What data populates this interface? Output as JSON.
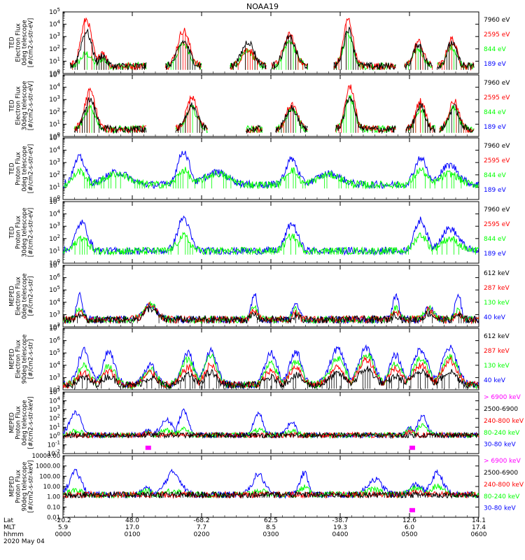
{
  "title": "NOAA19",
  "colors": {
    "black": "#000000",
    "red": "#ff0000",
    "green": "#00ff00",
    "blue": "#0000ff",
    "magenta": "#ff00ff"
  },
  "footer": {
    "row_labels": [
      "Lat",
      "MLT",
      "hhmm",
      "2020 May 04"
    ],
    "lat": [
      "-20.2",
      "48.0",
      "-68.2",
      "62.5",
      "-38.7",
      "12.6",
      "14.1"
    ],
    "mlt": [
      "5.9",
      "17.0",
      "7.7",
      "8.5",
      "19.3",
      "6.0",
      "17.4"
    ],
    "hhmm": [
      "0000",
      "0100",
      "0200",
      "0300",
      "0400",
      "0500",
      "0600"
    ]
  },
  "chart_data": [
    {
      "type": "line",
      "ylabel": "TED\nElectron Flux\n0deg telescope\n[#/cm2-s-str-eV]",
      "yscale": "log",
      "ytick_labels": [
        "10^0",
        "10^1",
        "10^2",
        "10^3",
        "10^4",
        "10^5"
      ],
      "ylim_exp": [
        0,
        5
      ],
      "xlim": [
        "0000",
        "0600"
      ],
      "legend": [
        {
          "label": "7960 eV",
          "color": "black"
        },
        {
          "label": "2595 eV",
          "color": "red"
        },
        {
          "label": "844 eV",
          "color": "green"
        },
        {
          "label": "189 eV",
          "color": "blue"
        }
      ],
      "series_colors": [
        "green",
        "red",
        "black"
      ],
      "bumps": [
        {
          "x": 0.056,
          "w": 0.018,
          "p": [
            1.6,
            4.4,
            3.4
          ]
        },
        {
          "x": 0.095,
          "w": 0.012,
          "p": [
            1.2,
            1.8,
            1.5
          ]
        },
        {
          "x": 0.29,
          "w": 0.02,
          "p": [
            2.4,
            3.5,
            2.6
          ]
        },
        {
          "x": 0.445,
          "w": 0.02,
          "p": [
            1.8,
            2.0,
            2.6
          ]
        },
        {
          "x": 0.545,
          "w": 0.02,
          "p": [
            2.6,
            3.1,
            2.9
          ]
        },
        {
          "x": 0.686,
          "w": 0.016,
          "p": [
            3.3,
            4.4,
            3.6
          ]
        },
        {
          "x": 0.855,
          "w": 0.016,
          "p": [
            2.0,
            2.6,
            2.4
          ]
        },
        {
          "x": 0.935,
          "w": 0.016,
          "p": [
            2.2,
            2.8,
            2.5
          ]
        }
      ],
      "noise_ranges": [
        [
          0.09,
          0.2
        ],
        [
          0.44,
          0.47
        ],
        [
          0.7,
          0.8
        ],
        [
          0.97,
          0.99
        ]
      ],
      "floor_exp": 0.6
    },
    {
      "type": "line",
      "ylabel": "TED\nElectron Flux\n30deg telescope\n[#/cm2-s-str-eV]",
      "yscale": "log",
      "ytick_labels": [
        "10^0",
        "10^1",
        "10^2",
        "10^3",
        "10^4",
        "10^5"
      ],
      "ylim_exp": [
        0,
        5
      ],
      "xlim": [
        "0000",
        "0600"
      ],
      "legend": [
        {
          "label": "7960 eV",
          "color": "black"
        },
        {
          "label": "2595 eV",
          "color": "red"
        },
        {
          "label": "844 eV",
          "color": "green"
        },
        {
          "label": "189 eV",
          "color": "blue"
        }
      ],
      "series_colors": [
        "green",
        "red",
        "black"
      ],
      "bumps": [
        {
          "x": 0.065,
          "w": 0.018,
          "p": [
            2.4,
            3.7,
            3.0
          ]
        },
        {
          "x": 0.31,
          "w": 0.018,
          "p": [
            2.3,
            3.1,
            2.5
          ]
        },
        {
          "x": 0.55,
          "w": 0.018,
          "p": [
            2.3,
            2.6,
            2.3
          ]
        },
        {
          "x": 0.69,
          "w": 0.016,
          "p": [
            3.2,
            4.1,
            3.2
          ]
        },
        {
          "x": 0.86,
          "w": 0.016,
          "p": [
            2.2,
            2.9,
            2.5
          ]
        },
        {
          "x": 0.94,
          "w": 0.016,
          "p": [
            2.3,
            2.9,
            2.4
          ]
        }
      ],
      "noise_ranges": [
        [
          0.1,
          0.2
        ],
        [
          0.44,
          0.48
        ],
        [
          0.72,
          0.8
        ],
        [
          0.96,
          0.99
        ]
      ],
      "floor_exp": 0.6
    },
    {
      "type": "line",
      "ylabel": "TED\nProton Flux\n0deg telescope\n[#/cm2-s-str-eV]",
      "yscale": "log",
      "ytick_labels": [
        "10^0",
        "10^1",
        "10^2",
        "10^3",
        "10^4",
        "10^5"
      ],
      "ylim_exp": [
        0,
        5
      ],
      "xlim": [
        "0000",
        "0600"
      ],
      "legend": [
        {
          "label": "7960 eV",
          "color": "black"
        },
        {
          "label": "2595 eV",
          "color": "red"
        },
        {
          "label": "844 eV",
          "color": "green"
        },
        {
          "label": "189 eV",
          "color": "blue"
        }
      ],
      "series_colors": [
        "blue",
        "green"
      ],
      "bumps": [
        {
          "x": 0.04,
          "w": 0.02,
          "p": [
            3.4,
            2.3
          ]
        },
        {
          "x": 0.13,
          "w": 0.04,
          "p": [
            2.2,
            2.1
          ]
        },
        {
          "x": 0.29,
          "w": 0.02,
          "p": [
            3.9,
            2.4
          ]
        },
        {
          "x": 0.37,
          "w": 0.04,
          "p": [
            2.2,
            2.1
          ]
        },
        {
          "x": 0.55,
          "w": 0.02,
          "p": [
            3.3,
            2.4
          ]
        },
        {
          "x": 0.64,
          "w": 0.04,
          "p": [
            2.1,
            2.0
          ]
        },
        {
          "x": 0.86,
          "w": 0.02,
          "p": [
            3.4,
            2.4
          ]
        },
        {
          "x": 0.93,
          "w": 0.03,
          "p": [
            2.8,
            2.1
          ]
        }
      ],
      "noise_ranges": [
        [
          0.0,
          1.0
        ]
      ],
      "floor_exp": 1.2
    },
    {
      "type": "line",
      "ylabel": "TED\nProton Flux\n30deg telescope\n[#/cm2-s-str-eV]",
      "yscale": "log",
      "ytick_labels": [
        "10^0",
        "10^1",
        "10^2",
        "10^3",
        "10^4",
        "10^5"
      ],
      "ylim_exp": [
        0,
        5
      ],
      "xlim": [
        "0000",
        "0600"
      ],
      "legend": [
        {
          "label": "7960 eV",
          "color": "black"
        },
        {
          "label": "2595 eV",
          "color": "red"
        },
        {
          "label": "844 eV",
          "color": "green"
        },
        {
          "label": "189 eV",
          "color": "blue"
        }
      ],
      "series_colors": [
        "blue",
        "green"
      ],
      "bumps": [
        {
          "x": 0.045,
          "w": 0.02,
          "p": [
            3.3,
            2.1
          ]
        },
        {
          "x": 0.29,
          "w": 0.02,
          "p": [
            3.7,
            2.2
          ]
        },
        {
          "x": 0.55,
          "w": 0.02,
          "p": [
            3.2,
            2.2
          ]
        },
        {
          "x": 0.86,
          "w": 0.02,
          "p": [
            3.5,
            2.3
          ]
        },
        {
          "x": 0.93,
          "w": 0.03,
          "p": [
            2.8,
            2.0
          ]
        }
      ],
      "noise_ranges": [
        [
          0.0,
          1.0
        ]
      ],
      "floor_exp": 1.0
    },
    {
      "type": "line",
      "ylabel": "MEPED\nElectron Flux\n0deg telescope\n[#/cm2-s-str]",
      "yscale": "log",
      "ytick_labels": [
        "10^2",
        "10^3",
        "10^4",
        "10^5",
        "10^6",
        "10^7"
      ],
      "ylim_exp": [
        2,
        7
      ],
      "xlim": [
        "0000",
        "0600"
      ],
      "legend": [
        {
          "label": "612 keV",
          "color": "black"
        },
        {
          "label": "287 keV",
          "color": "red"
        },
        {
          "label": "130 keV",
          "color": "green"
        },
        {
          "label": "40 keV",
          "color": "blue"
        }
      ],
      "series_colors": [
        "blue",
        "green",
        "red",
        "black"
      ],
      "bumps": [
        {
          "x": 0.04,
          "w": 0.01,
          "p": [
            4.5,
            3.5,
            3.2,
            3.0
          ]
        },
        {
          "x": 0.21,
          "w": 0.02,
          "p": [
            3.8,
            3.8,
            3.7,
            3.5
          ]
        },
        {
          "x": 0.46,
          "w": 0.01,
          "p": [
            4.7,
            3.6,
            3.3,
            3.0
          ]
        },
        {
          "x": 0.56,
          "w": 0.01,
          "p": [
            4.1,
            3.4,
            3.1,
            2.9
          ]
        },
        {
          "x": 0.8,
          "w": 0.01,
          "p": [
            4.6,
            3.6,
            3.4,
            3.0
          ]
        },
        {
          "x": 0.88,
          "w": 0.015,
          "p": [
            3.6,
            3.5,
            3.4,
            3.1
          ]
        },
        {
          "x": 0.95,
          "w": 0.01,
          "p": [
            4.7,
            3.4,
            3.2,
            3.0
          ]
        }
      ],
      "noise_ranges": [
        [
          0.0,
          1.0
        ]
      ],
      "floor_exp": 2.6
    },
    {
      "type": "line",
      "ylabel": "MEPED\nElectron Flux\n90deg telescope\n[#/cm2-s-str]",
      "yscale": "log",
      "ytick_labels": [
        "10^2",
        "10^3",
        "10^4",
        "10^5",
        "10^6",
        "10^7"
      ],
      "ylim_exp": [
        2,
        7
      ],
      "xlim": [
        "0000",
        "0600"
      ],
      "legend": [
        {
          "label": "612 keV",
          "color": "black"
        },
        {
          "label": "287 keV",
          "color": "red"
        },
        {
          "label": "130 keV",
          "color": "green"
        },
        {
          "label": "40 keV",
          "color": "blue"
        }
      ],
      "series_colors": [
        "blue",
        "green",
        "red",
        "black"
      ],
      "bumps": [
        {
          "x": 0.05,
          "w": 0.02,
          "p": [
            5.2,
            4.0,
            3.4,
            3.0
          ]
        },
        {
          "x": 0.11,
          "w": 0.02,
          "p": [
            5.1,
            4.0,
            3.5,
            3.1
          ]
        },
        {
          "x": 0.21,
          "w": 0.02,
          "p": [
            4.0,
            3.7,
            3.4,
            3.0
          ]
        },
        {
          "x": 0.3,
          "w": 0.02,
          "p": [
            5.0,
            4.5,
            3.8,
            3.2
          ]
        },
        {
          "x": 0.355,
          "w": 0.02,
          "p": [
            5.2,
            4.8,
            4.0,
            3.4
          ]
        },
        {
          "x": 0.5,
          "w": 0.02,
          "p": [
            5.0,
            4.1,
            3.5,
            3.0
          ]
        },
        {
          "x": 0.56,
          "w": 0.02,
          "p": [
            5.1,
            4.3,
            3.9,
            3.2
          ]
        },
        {
          "x": 0.66,
          "w": 0.025,
          "p": [
            5.3,
            4.6,
            3.8,
            3.3
          ]
        },
        {
          "x": 0.73,
          "w": 0.025,
          "p": [
            5.4,
            4.9,
            4.5,
            3.7
          ]
        },
        {
          "x": 0.8,
          "w": 0.02,
          "p": [
            4.8,
            4.1,
            3.8,
            3.1
          ]
        },
        {
          "x": 0.86,
          "w": 0.025,
          "p": [
            5.3,
            4.5,
            4.0,
            3.6
          ]
        },
        {
          "x": 0.93,
          "w": 0.025,
          "p": [
            5.4,
            4.7,
            4.4,
            3.5
          ]
        }
      ],
      "noise_ranges": [
        [
          0.0,
          1.0
        ]
      ],
      "floor_exp": 2.4
    },
    {
      "type": "line",
      "ylabel": "MEPED\nProton Flux\n0deg telescope\n[#/cm2-s-str-keV]",
      "yscale": "log",
      "ytick_labels": [
        "10^-2",
        "10^-1",
        "10^0",
        "10^1",
        "10^2",
        "10^3",
        "10^4",
        "10^5"
      ],
      "ylim_exp": [
        -2,
        5
      ],
      "xlim": [
        "0000",
        "0600"
      ],
      "legend": [
        {
          "label": "> 6900 keV",
          "color": "magenta"
        },
        {
          "label": "2500-6900",
          "color": "black"
        },
        {
          "label": "240-800 keV",
          "color": "red"
        },
        {
          "label": "80-240 keV",
          "color": "green"
        },
        {
          "label": "30-80 keV",
          "color": "blue"
        }
      ],
      "series_colors": [
        "blue",
        "green",
        "red",
        "black"
      ],
      "bumps": [
        {
          "x": 0.03,
          "w": 0.02,
          "p": [
            2.6,
            0.6,
            -0.4,
            -0.8
          ]
        },
        {
          "x": 0.205,
          "w": 0.01,
          "p": [
            0.6,
            0.5,
            0.3,
            -0.4
          ]
        },
        {
          "x": 0.25,
          "w": 0.02,
          "p": [
            1.8,
            0.6,
            -0.3,
            -0.9
          ]
        },
        {
          "x": 0.29,
          "w": 0.015,
          "p": [
            2.9,
            0.9,
            -0.4,
            -0.9
          ]
        },
        {
          "x": 0.47,
          "w": 0.015,
          "p": [
            2.6,
            0.7,
            -0.4,
            -0.9
          ]
        },
        {
          "x": 0.55,
          "w": 0.015,
          "p": [
            1.6,
            0.6,
            -0.5,
            -0.9
          ]
        },
        {
          "x": 0.835,
          "w": 0.012,
          "p": [
            0.9,
            0.7,
            0.4,
            -0.2
          ]
        },
        {
          "x": 0.865,
          "w": 0.015,
          "p": [
            2.4,
            1.3,
            -0.2,
            -0.9
          ]
        }
      ],
      "noise_ranges": [
        [
          0.0,
          1.0
        ]
      ],
      "floor_exp": 0.1,
      "magenta_spots": [
        0.205,
        0.84
      ]
    },
    {
      "type": "line",
      "ylabel": "MEPED\nProton Flux\n90deg telescope\n[#/cm2-s-str-keV]",
      "yscale": "log",
      "ytick_labels": [
        "0.01",
        "0.10",
        "1.00",
        "10.00",
        "100.00",
        "1000.00",
        "10000.00"
      ],
      "ylim_exp": [
        -2,
        4
      ],
      "xlim": [
        "0000",
        "0600"
      ],
      "legend": [
        {
          "label": "> 6900 keV",
          "color": "magenta"
        },
        {
          "label": "2500-6900",
          "color": "black"
        },
        {
          "label": "240-800 keV",
          "color": "red"
        },
        {
          "label": "80-240 keV",
          "color": "green"
        },
        {
          "label": "30-80 keV",
          "color": "blue"
        }
      ],
      "series_colors": [
        "blue",
        "green",
        "red",
        "black"
      ],
      "bumps": [
        {
          "x": 0.03,
          "w": 0.02,
          "p": [
            2.4,
            0.6,
            -0.4,
            -0.8
          ]
        },
        {
          "x": 0.2,
          "w": 0.012,
          "p": [
            0.9,
            0.6,
            0.1,
            -0.4
          ]
        },
        {
          "x": 0.265,
          "w": 0.025,
          "p": [
            2.4,
            0.6,
            -0.4,
            -0.8
          ]
        },
        {
          "x": 0.47,
          "w": 0.02,
          "p": [
            2.2,
            0.6,
            -0.4,
            -0.9
          ]
        },
        {
          "x": 0.58,
          "w": 0.015,
          "p": [
            2.3,
            0.9,
            0.1,
            -0.6
          ]
        },
        {
          "x": 0.75,
          "w": 0.025,
          "p": [
            1.7,
            0.7,
            -0.3,
            -0.8
          ]
        },
        {
          "x": 0.85,
          "w": 0.02,
          "p": [
            1.2,
            0.9,
            0.5,
            -0.3
          ]
        },
        {
          "x": 0.9,
          "w": 0.02,
          "p": [
            2.3,
            1.0,
            0.3,
            -0.5
          ]
        }
      ],
      "noise_ranges": [
        [
          0.0,
          1.0
        ]
      ],
      "floor_exp": 0.2,
      "magenta_spots": [
        0.84
      ]
    }
  ]
}
